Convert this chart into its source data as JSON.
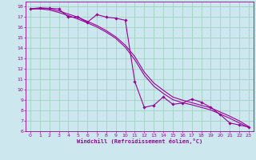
{
  "xlabel": "Windchill (Refroidissement éolien,°C)",
  "bg_color": "#cce8ee",
  "line_color": "#990099",
  "grid_color": "#99ccbb",
  "xlim": [
    -0.5,
    23.5
  ],
  "ylim": [
    6,
    18.5
  ],
  "yticks": [
    6,
    7,
    8,
    9,
    10,
    11,
    12,
    13,
    14,
    15,
    16,
    17,
    18
  ],
  "xticks": [
    0,
    1,
    2,
    3,
    4,
    5,
    6,
    7,
    8,
    9,
    10,
    11,
    12,
    13,
    14,
    15,
    16,
    17,
    18,
    19,
    20,
    21,
    22,
    23
  ],
  "series1_x": [
    0,
    1,
    2,
    3,
    4,
    5,
    6,
    7,
    8,
    9,
    10,
    11,
    12,
    13,
    14,
    15,
    16,
    17,
    18,
    19,
    20,
    21,
    22,
    23
  ],
  "series1_y": [
    17.8,
    17.9,
    17.85,
    17.8,
    17.0,
    17.0,
    16.5,
    17.25,
    17.0,
    16.9,
    16.7,
    10.8,
    8.3,
    8.5,
    9.3,
    8.6,
    8.7,
    9.1,
    8.8,
    8.3,
    7.6,
    6.8,
    6.6,
    6.4
  ],
  "series2_x": [
    0,
    1,
    2,
    3,
    4,
    5,
    6,
    7,
    8,
    9,
    10,
    11,
    12,
    13,
    14,
    15,
    16,
    17,
    18,
    19,
    20,
    21,
    22,
    23
  ],
  "series2_y": [
    17.8,
    17.8,
    17.7,
    17.45,
    17.15,
    16.82,
    16.45,
    16.05,
    15.55,
    14.95,
    14.1,
    12.9,
    11.4,
    10.35,
    9.65,
    9.05,
    8.75,
    8.55,
    8.3,
    8.05,
    7.65,
    7.25,
    6.8,
    6.35
  ],
  "series3_x": [
    0,
    1,
    2,
    3,
    4,
    5,
    6,
    7,
    8,
    9,
    10,
    11,
    12,
    13,
    14,
    15,
    16,
    17,
    18,
    19,
    20,
    21,
    22,
    23
  ],
  "series3_y": [
    17.8,
    17.82,
    17.82,
    17.6,
    17.3,
    17.0,
    16.6,
    16.2,
    15.7,
    15.1,
    14.3,
    13.2,
    11.7,
    10.65,
    9.95,
    9.3,
    9.0,
    8.75,
    8.5,
    8.25,
    7.85,
    7.45,
    7.0,
    6.45
  ]
}
